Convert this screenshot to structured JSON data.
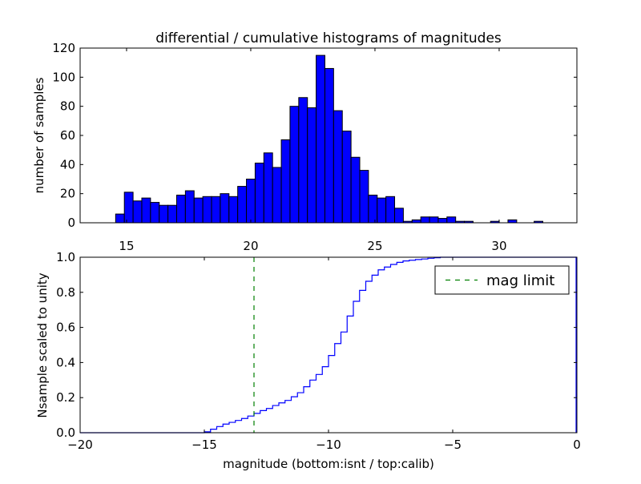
{
  "chart_data": [
    {
      "type": "bar",
      "title": "differential / cumulative histograms of magnitudes",
      "xlabel": "",
      "ylabel": "number of samples",
      "xlim": [
        13.13,
        33.13
      ],
      "ylim": [
        0,
        120
      ],
      "xticks": [
        "15",
        "20",
        "25",
        "30"
      ],
      "xtick_values": [
        15,
        20,
        25,
        30
      ],
      "yticks": [
        "0",
        "20",
        "40",
        "60",
        "80",
        "100",
        "120"
      ],
      "ytick_values": [
        0,
        20,
        40,
        60,
        80,
        100,
        120
      ],
      "bin_start": 14.56,
      "bin_width": 0.351,
      "values": [
        6,
        21,
        15,
        17,
        14,
        12,
        12,
        19,
        22,
        17,
        18,
        18,
        20,
        18,
        25,
        30,
        41,
        48,
        38,
        57,
        80,
        86,
        79,
        115,
        106,
        77,
        63,
        45,
        36,
        19,
        17,
        18,
        10,
        1,
        2,
        4,
        4,
        3,
        4,
        1,
        1,
        0,
        0,
        1,
        0,
        2,
        0,
        0,
        1
      ],
      "bar_color": "#0000ff",
      "grid": false
    },
    {
      "type": "line",
      "xlabel": "magnitude (bottom:isnt / top:calib)",
      "ylabel": "Nsample scaled to unity",
      "xlim": [
        -20,
        0
      ],
      "ylim": [
        0,
        1
      ],
      "xticks": [
        "−20",
        "−15",
        "−10",
        "−5",
        "0"
      ],
      "xtick_values": [
        -20,
        -15,
        -10,
        -5,
        0
      ],
      "yticks": [
        "0.0",
        "0.2",
        "0.4",
        "0.6",
        "0.8",
        "1.0"
      ],
      "ytick_values": [
        0,
        0.2,
        0.4,
        0.6,
        0.8,
        1.0
      ],
      "step_start": -15.0,
      "step_width": 0.25,
      "cumulative": [
        0.005,
        0.02,
        0.035,
        0.049,
        0.059,
        0.07,
        0.081,
        0.095,
        0.11,
        0.126,
        0.138,
        0.155,
        0.17,
        0.184,
        0.205,
        0.228,
        0.262,
        0.3,
        0.332,
        0.376,
        0.44,
        0.508,
        0.574,
        0.665,
        0.749,
        0.811,
        0.863,
        0.898,
        0.928,
        0.944,
        0.959,
        0.971,
        0.979,
        0.983,
        0.987,
        0.99,
        0.994,
        0.997,
        1.0
      ],
      "line_color": "#0000ff",
      "mag_limit": -13.0,
      "mag_limit_color": "#007f00",
      "legend": {
        "label": "mag limit",
        "position": "upper right"
      },
      "grid": false
    }
  ]
}
